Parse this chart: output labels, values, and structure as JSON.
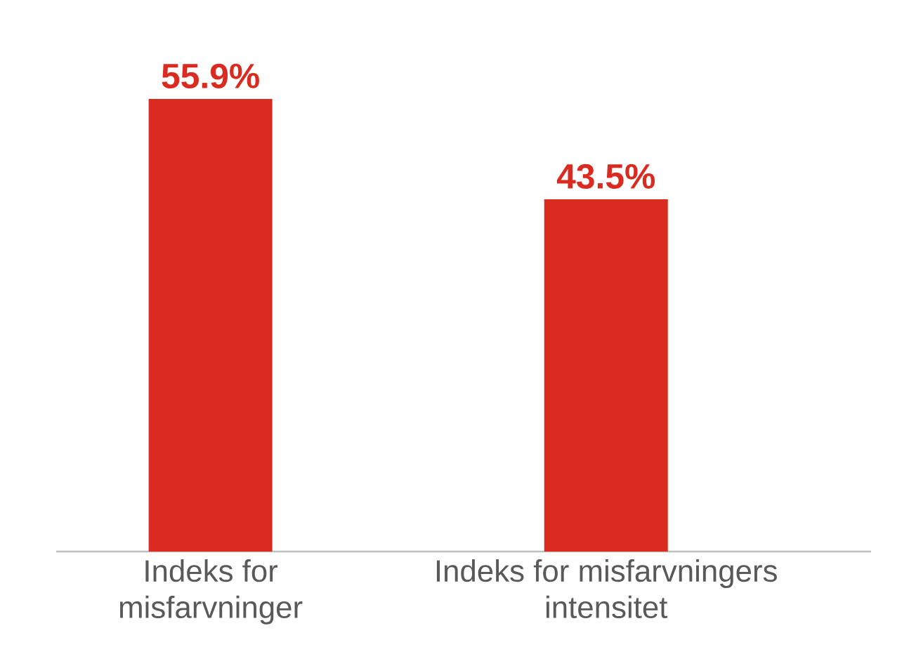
{
  "chart_data": {
    "type": "bar",
    "categories": [
      "Indeks for misfarvninger",
      "Indeks for misfarvningers intensitet"
    ],
    "values": [
      55.9,
      43.5
    ],
    "value_labels": [
      "55.9%",
      "43.5%"
    ],
    "color": "#d92b1f"
  }
}
